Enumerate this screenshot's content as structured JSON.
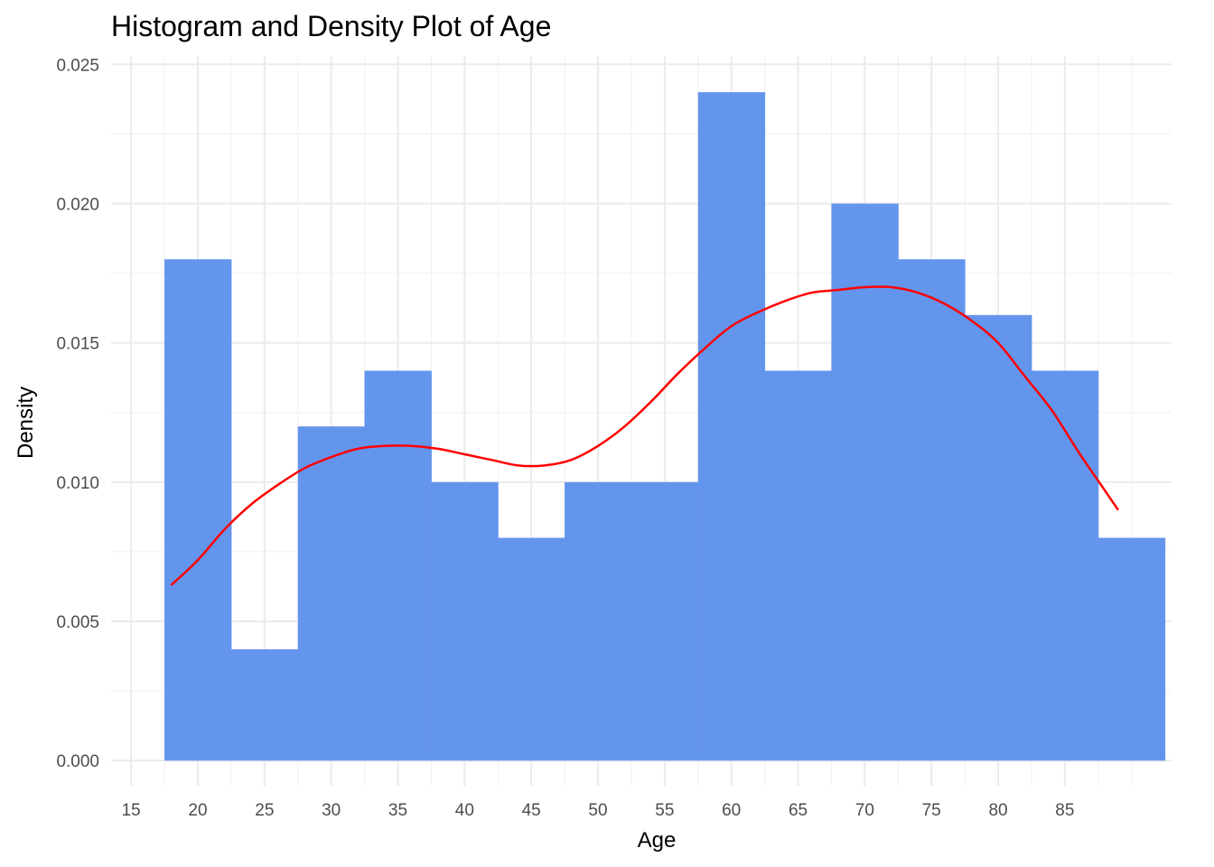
{
  "chart_data": {
    "type": "bar",
    "title": "Histogram and Density Plot of Age",
    "xlabel": "Age",
    "ylabel": "Density",
    "xlim": [
      13.5,
      93
    ],
    "ylim": [
      -0.0009,
      0.0253
    ],
    "x_ticks": [
      15,
      20,
      25,
      30,
      35,
      40,
      45,
      50,
      55,
      60,
      65,
      70,
      75,
      80,
      85
    ],
    "x_tick_labels": [
      "15",
      "20",
      "25",
      "30",
      "35",
      "40",
      "45",
      "50",
      "55",
      "60",
      "65",
      "70",
      "75",
      "80",
      "85"
    ],
    "y_ticks": [
      0,
      0.005,
      0.01,
      0.015,
      0.02,
      0.025
    ],
    "y_tick_labels": [
      "0.000",
      "0.005",
      "0.010",
      "0.015",
      "0.020",
      "0.025"
    ],
    "grid": true,
    "legend": "none",
    "bin_width": 5,
    "bins": [
      {
        "start": 17.5,
        "end": 22.5,
        "density": 0.018
      },
      {
        "start": 22.5,
        "end": 27.5,
        "density": 0.004
      },
      {
        "start": 27.5,
        "end": 32.5,
        "density": 0.012
      },
      {
        "start": 32.5,
        "end": 37.5,
        "density": 0.014
      },
      {
        "start": 37.5,
        "end": 42.5,
        "density": 0.01
      },
      {
        "start": 42.5,
        "end": 47.5,
        "density": 0.008
      },
      {
        "start": 47.5,
        "end": 52.5,
        "density": 0.01
      },
      {
        "start": 52.5,
        "end": 57.5,
        "density": 0.01
      },
      {
        "start": 57.5,
        "end": 62.5,
        "density": 0.024
      },
      {
        "start": 62.5,
        "end": 67.5,
        "density": 0.014
      },
      {
        "start": 67.5,
        "end": 72.5,
        "density": 0.02
      },
      {
        "start": 72.5,
        "end": 77.5,
        "density": 0.018
      },
      {
        "start": 77.5,
        "end": 82.5,
        "density": 0.016
      },
      {
        "start": 82.5,
        "end": 87.5,
        "density": 0.014
      },
      {
        "start": 87.5,
        "end": 92.5,
        "density": 0.008
      }
    ],
    "bar_color": "#6495ED",
    "density_curve": {
      "color": "#FF0000",
      "x": [
        18,
        20,
        22,
        24,
        26,
        28,
        30,
        32,
        34,
        36,
        38,
        40,
        42,
        44,
        46,
        48,
        50,
        52,
        54,
        56,
        58,
        60,
        62,
        64,
        66,
        68,
        70,
        72,
        74,
        76,
        78,
        80,
        82,
        84,
        86,
        88,
        89
      ],
      "y": [
        0.0063,
        0.0072,
        0.0083,
        0.0092,
        0.0099,
        0.0105,
        0.0109,
        0.0112,
        0.0113,
        0.0113,
        0.0112,
        0.011,
        0.0108,
        0.0106,
        0.0106,
        0.0108,
        0.0113,
        0.012,
        0.0129,
        0.0139,
        0.0148,
        0.0156,
        0.0161,
        0.0165,
        0.0168,
        0.0169,
        0.017,
        0.017,
        0.0168,
        0.0164,
        0.0158,
        0.015,
        0.0138,
        0.0126,
        0.0111,
        0.0097,
        0.009
      ]
    }
  }
}
